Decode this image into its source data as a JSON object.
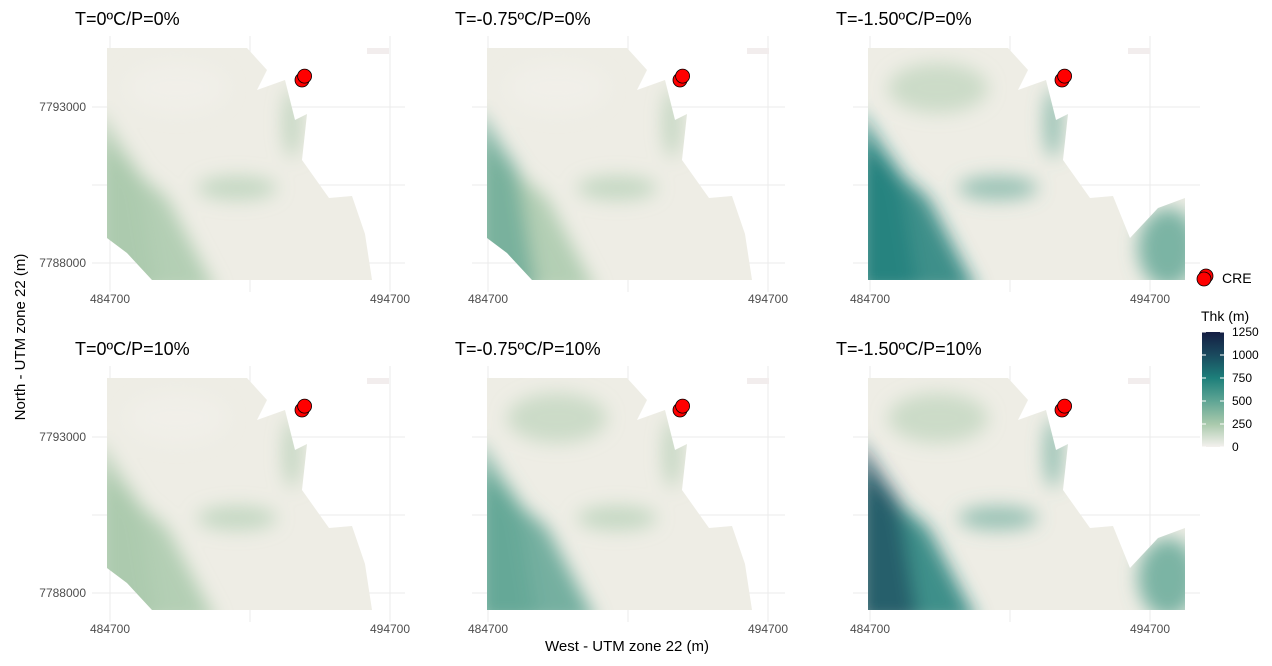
{
  "chart_data": {
    "type": "heatmap",
    "xlabel": "West - UTM zone 22 (m)",
    "ylabel": "North - UTM zone 22 (m)",
    "x_ticks": [
      484700,
      494700
    ],
    "y_ticks": [
      7788000,
      7793000
    ],
    "grid": true,
    "panels": [
      {
        "title": "T=0ºC/P=0%",
        "max_thk_estimate": 300
      },
      {
        "title": "T=-0.75ºC/P=0%",
        "max_thk_estimate": 350
      },
      {
        "title": "T=-1.50ºC/P=0%",
        "max_thk_estimate": 750
      },
      {
        "title": "T=0ºC/P=10%",
        "max_thk_estimate": 300
      },
      {
        "title": "T=-0.75ºC/P=10%",
        "max_thk_estimate": 500
      },
      {
        "title": "T=-1.50ºC/P=10%",
        "max_thk_estimate": 800
      }
    ],
    "points": {
      "name": "CRE",
      "color": "#ff0000",
      "x": [
        491557,
        491650
      ],
      "y": [
        7793865,
        7793990
      ]
    },
    "colorbar": {
      "title": "Thk (m)",
      "ticks": [
        0,
        250,
        500,
        750,
        1000,
        1250
      ],
      "colors": [
        "#f4f1ee",
        "#a9c9ac",
        "#5fa594",
        "#1d7f7a",
        "#1a4a5e",
        "#141d42"
      ]
    },
    "legend_placement": "right"
  }
}
